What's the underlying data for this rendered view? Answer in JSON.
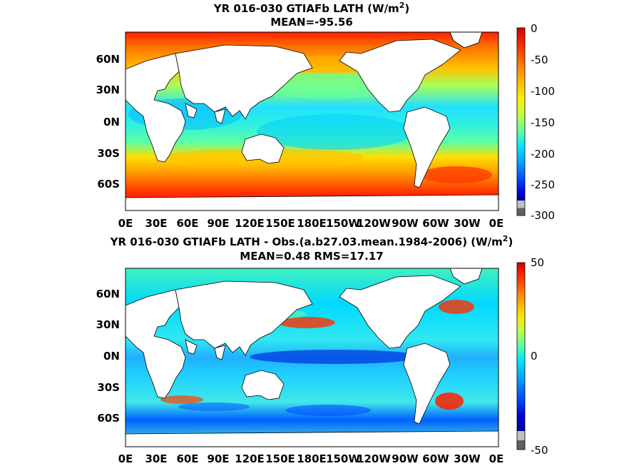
{
  "panels": [
    {
      "title_line1": "YR 016-030 GTIAFb  LATH (W/m",
      "title_units_end": ")",
      "superscript": "2",
      "title_line2": "MEAN=-95.56",
      "lat_ticks": [
        "60N",
        "30N",
        "0N",
        "30S",
        "60S"
      ],
      "lon_ticks": [
        "0E",
        "30E",
        "60E",
        "90E",
        "120E",
        "150E",
        "180E",
        "150W",
        "120W",
        "90W",
        "60W",
        "30W",
        "0E"
      ],
      "colorbar_ticks": [
        "0",
        "-50",
        "-100",
        "-150",
        "-200",
        "-250",
        "-300"
      ],
      "colorbar_range": [
        -300,
        0
      ]
    },
    {
      "title_line1": "YR 016-030 GTIAFb LATH - Obs.(a.b27.03.mean.1984-2006) (W/m",
      "title_units_end": ")",
      "superscript": "2",
      "title_line2": "MEAN=0.48 RMS=17.17",
      "lat_ticks": [
        "60N",
        "30N",
        "0N",
        "30S",
        "60S"
      ],
      "lon_ticks": [
        "0E",
        "30E",
        "60E",
        "90E",
        "120E",
        "150E",
        "180E",
        "150W",
        "120W",
        "90W",
        "60W",
        "30W",
        "0E"
      ],
      "colorbar_ticks": [
        "50",
        "0",
        "-50"
      ],
      "colorbar_range": [
        -50,
        50
      ]
    }
  ],
  "colors": {
    "land": "#ffffff",
    "missing": "#808080",
    "colormap": [
      "#d00000",
      "#ff2000",
      "#ff6000",
      "#ff9800",
      "#ffc800",
      "#fff000",
      "#d8ff28",
      "#a0ff60",
      "#60ffa0",
      "#28ffd8",
      "#00d8ff",
      "#00a0ff",
      "#0060ff",
      "#0028ff",
      "#0000d0",
      "#00008c"
    ]
  }
}
